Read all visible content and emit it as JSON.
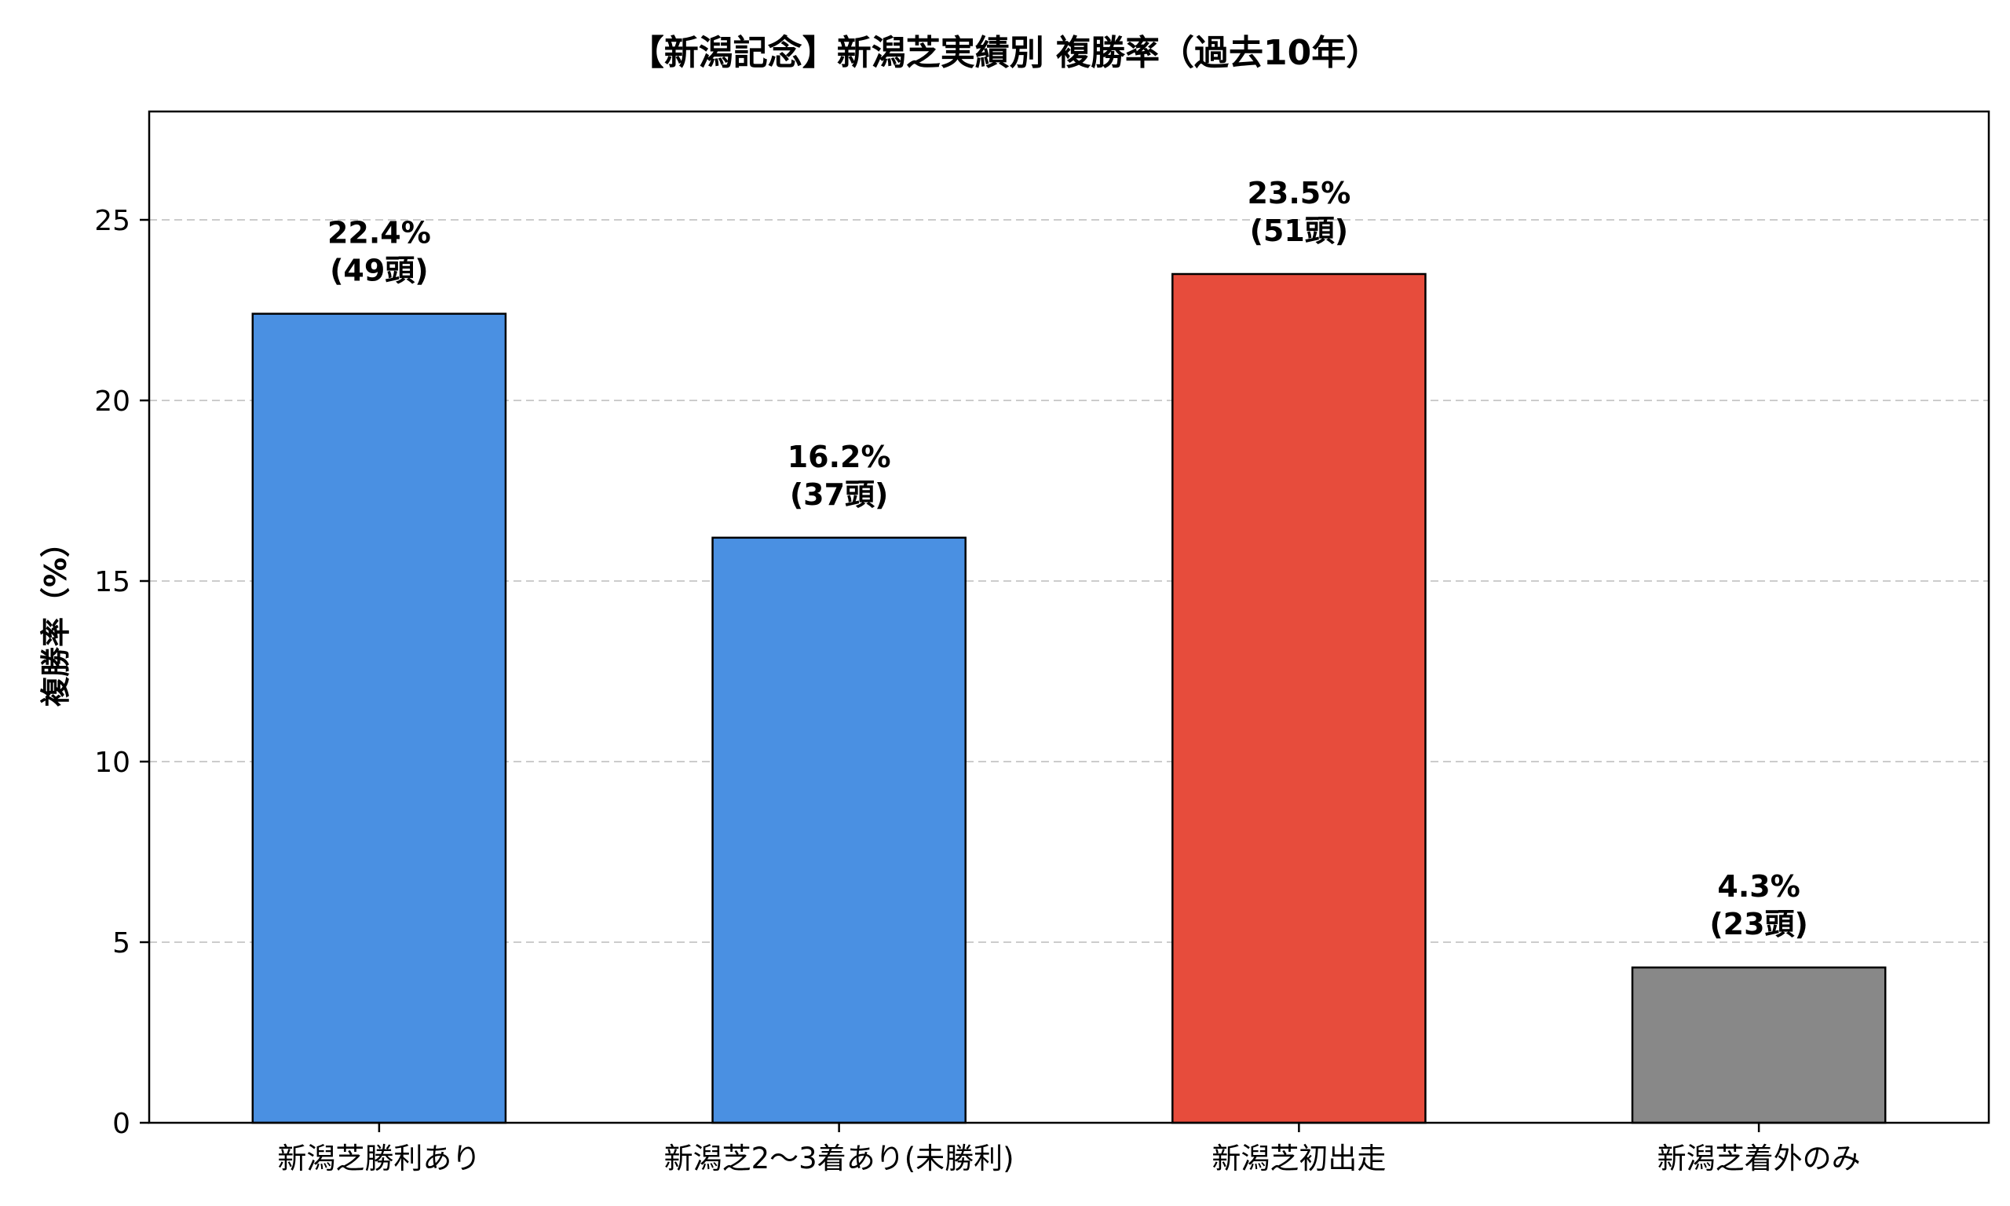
{
  "chart_data": {
    "type": "bar",
    "title": "【新潟記念】新潟芝実績別 複勝率（過去10年）",
    "xlabel": "",
    "ylabel": "複勝率（%）",
    "ylim": [
      0,
      28
    ],
    "yticks": [
      0,
      5,
      10,
      15,
      20,
      25
    ],
    "grid": "y-dashed",
    "categories": [
      "新潟芝勝利あり",
      "新潟芝2～3着あり(未勝利)",
      "新潟芝初出走",
      "新潟芝着外のみ"
    ],
    "values": [
      22.4,
      16.2,
      23.5,
      4.3
    ],
    "labels_pct": [
      "22.4%",
      "16.2%",
      "23.5%",
      "4.3%"
    ],
    "labels_count": [
      "(49頭)",
      "(37頭)",
      "(51頭)",
      "(23頭)"
    ],
    "colors": [
      "#4a90e2",
      "#4a90e2",
      "#e74c3c",
      "#888888"
    ]
  }
}
